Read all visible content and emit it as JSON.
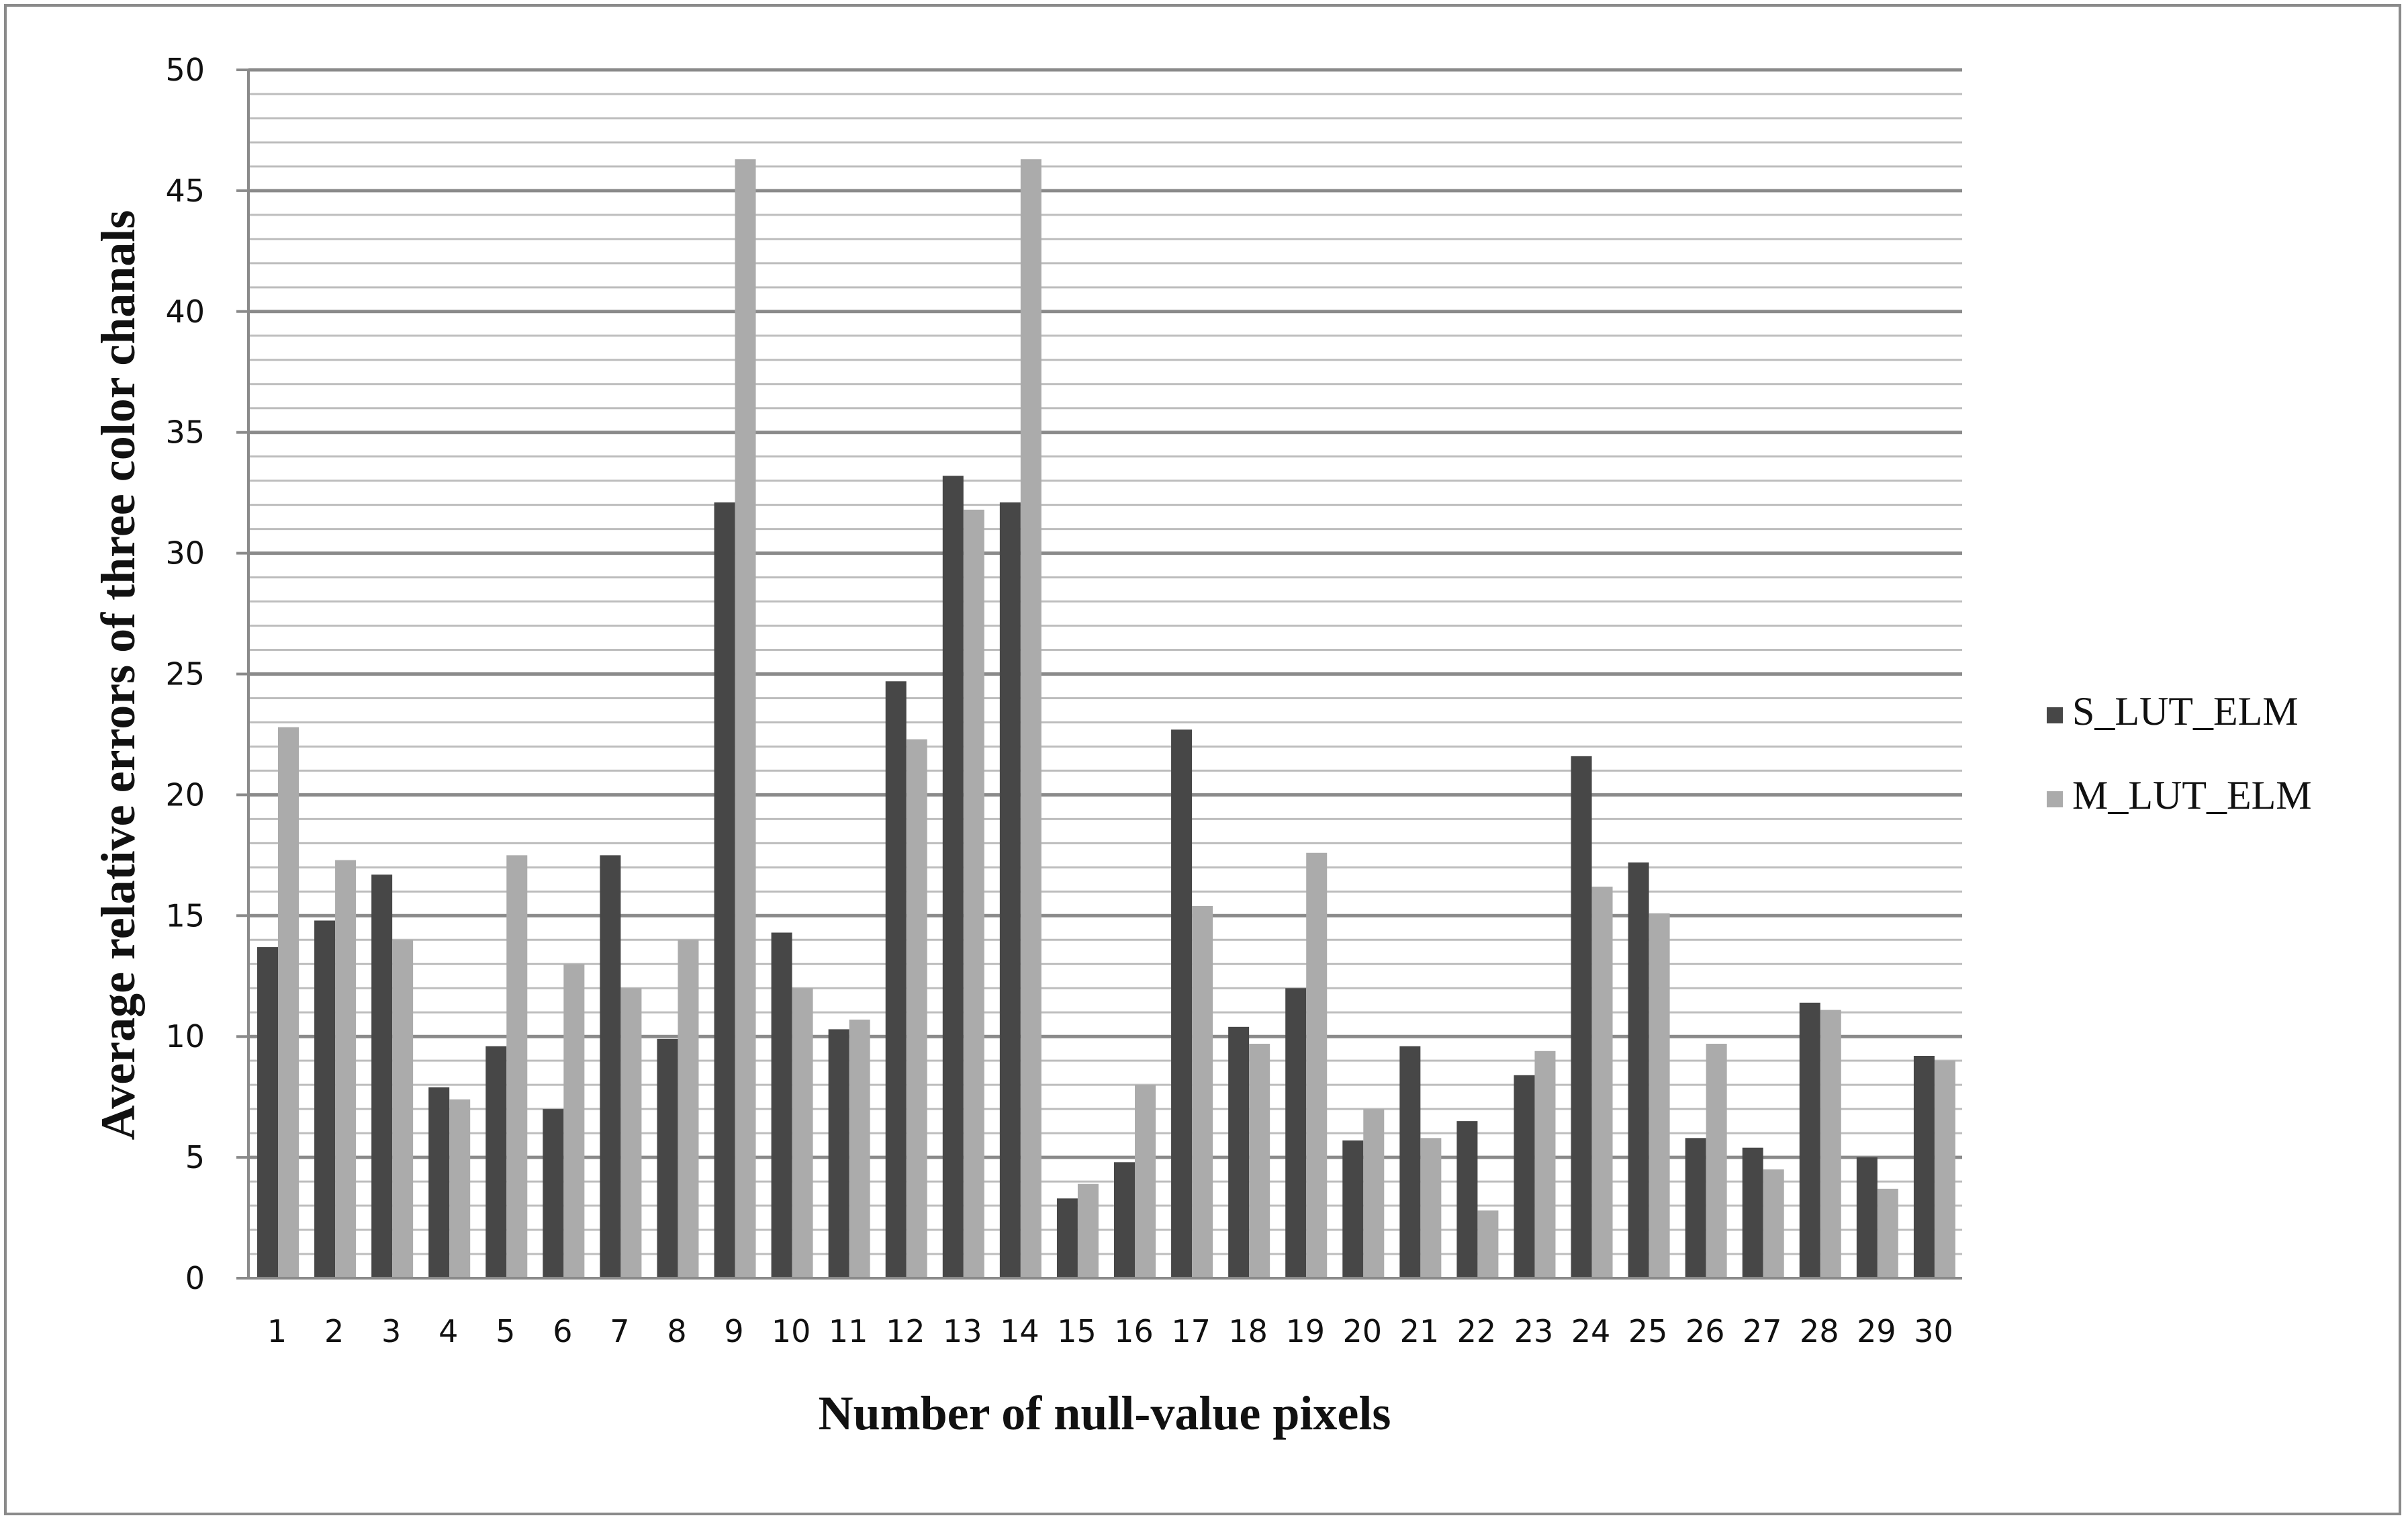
{
  "chart_data": {
    "type": "bar",
    "xlabel": "Number of null-value pixels",
    "ylabel": "Average relative errors of three color chanals",
    "ylim": [
      0,
      50
    ],
    "y_major_step": 5,
    "y_minor_step": 1,
    "grid": true,
    "legend_position": "right",
    "categories": [
      "1",
      "2",
      "3",
      "4",
      "5",
      "6",
      "7",
      "8",
      "9",
      "10",
      "11",
      "12",
      "13",
      "14",
      "15",
      "16",
      "17",
      "18",
      "19",
      "20",
      "21",
      "22",
      "23",
      "24",
      "25",
      "26",
      "27",
      "28",
      "29",
      "30"
    ],
    "series": [
      {
        "name": "S_LUT_ELM",
        "color": "#474747",
        "values": [
          13.7,
          14.8,
          16.7,
          7.9,
          9.6,
          7.0,
          17.5,
          9.9,
          32.1,
          14.3,
          10.3,
          24.7,
          33.2,
          32.1,
          3.3,
          4.8,
          22.7,
          10.4,
          12.0,
          5.7,
          9.6,
          6.5,
          8.4,
          21.6,
          17.2,
          5.8,
          5.4,
          11.4,
          5.0,
          9.2
        ]
      },
      {
        "name": "M_LUT_ELM",
        "color": "#ababab",
        "values": [
          22.8,
          17.3,
          14.0,
          7.4,
          17.5,
          13.0,
          12.0,
          14.0,
          46.3,
          12.0,
          10.7,
          22.3,
          31.8,
          46.3,
          3.9,
          8.0,
          15.4,
          9.7,
          17.6,
          7.0,
          5.8,
          2.8,
          9.4,
          16.2,
          15.1,
          9.7,
          4.5,
          11.1,
          3.7,
          9.0
        ]
      }
    ]
  }
}
